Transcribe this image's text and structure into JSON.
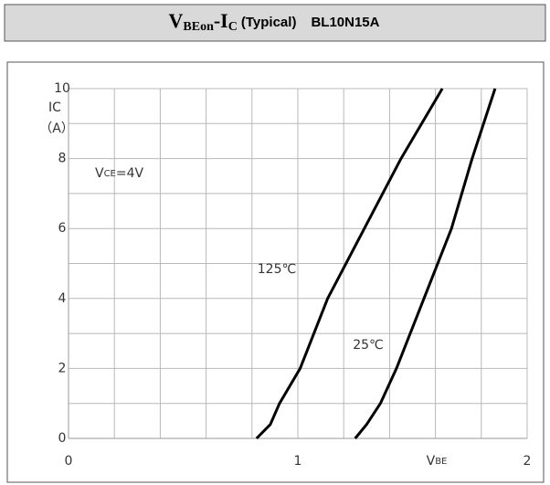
{
  "header": {
    "v": "V",
    "v_sub": "BEon",
    "i": "-I",
    "i_sub": "C",
    "note": "(Typical)",
    "part": "BL10N15A"
  },
  "chart_data": {
    "type": "line",
    "y_label": [
      "IC",
      "（A）"
    ],
    "x_label": {
      "main": "V",
      "sub": "BE"
    },
    "condition": {
      "main": "V",
      "sub": "CE",
      "rest": "=4V"
    },
    "xlim": [
      0,
      2
    ],
    "ylim": [
      0,
      10
    ],
    "xticks": [
      0,
      1,
      2
    ],
    "yticks": [
      0,
      2,
      4,
      6,
      8,
      10
    ],
    "xgrid": [
      0.2,
      0.4,
      0.6,
      0.8,
      1,
      1.2,
      1.4,
      1.6,
      1.8,
      2
    ],
    "ygrid": [
      1,
      2,
      3,
      4,
      5,
      6,
      7,
      8,
      9,
      10
    ],
    "grid": true,
    "series": [
      {
        "name": "125℃",
        "color": "#000000",
        "x": [
          0.82,
          0.88,
          0.92,
          1.01,
          1.13,
          1.29,
          1.45,
          1.63
        ],
        "values": [
          0,
          0.4,
          1,
          2,
          4,
          6,
          8,
          10
        ]
      },
      {
        "name": "25℃",
        "color": "#000000",
        "x": [
          1.25,
          1.3,
          1.36,
          1.43,
          1.55,
          1.67,
          1.76,
          1.86
        ],
        "values": [
          0,
          0.4,
          1,
          2,
          4,
          6,
          8,
          10
        ]
      }
    ]
  }
}
